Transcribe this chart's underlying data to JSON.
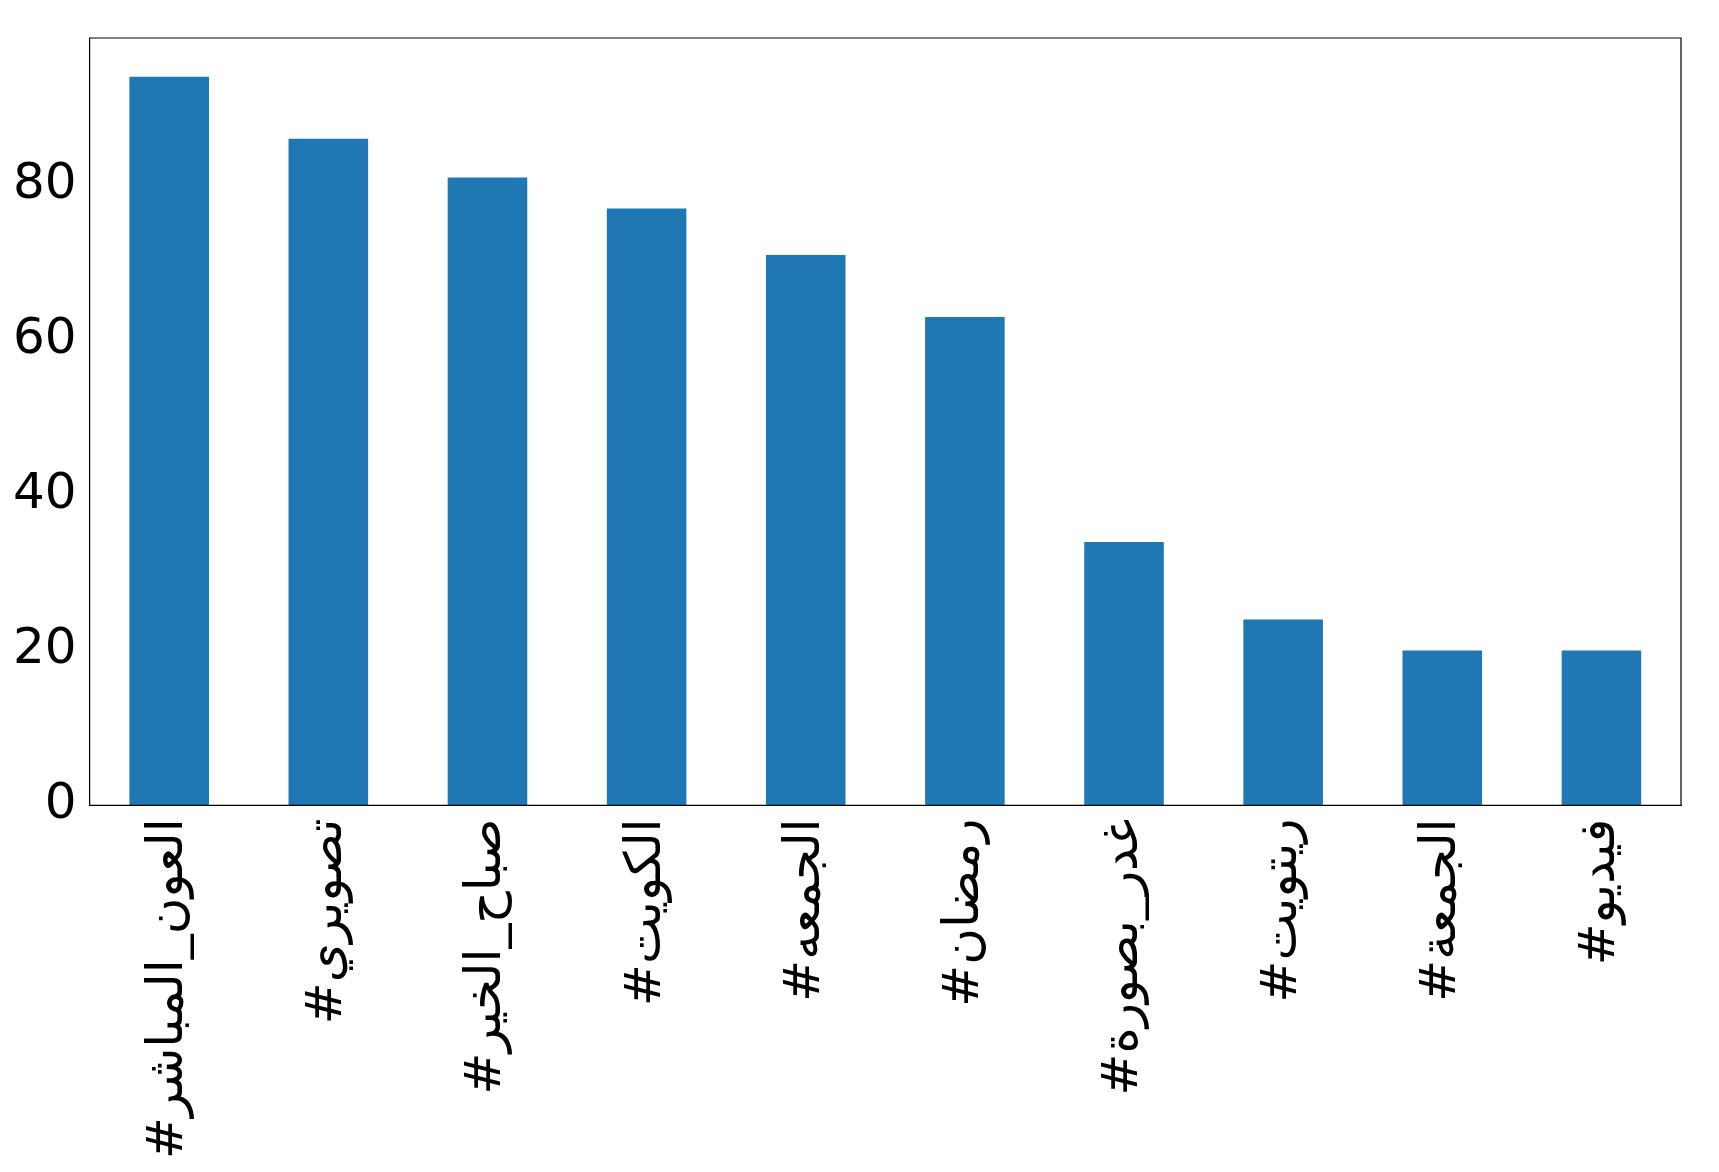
{
  "chart_data": {
    "type": "bar",
    "categories": [
      "#العون_المباشر",
      "#تصويري",
      "#صباح_الخير",
      "#الكويت",
      "#الجمعه",
      "#رمضان",
      "#غدر_بصورة",
      "#ريتويت",
      "#الجمعة",
      "#فيديو"
    ],
    "values": [
      94,
      86,
      81,
      77,
      71,
      63,
      34,
      24,
      20,
      20
    ],
    "color": "#1f77b4",
    "ylim": [
      0,
      99
    ],
    "yticks": [
      0,
      20,
      40,
      60,
      80
    ],
    "grid": false,
    "legend": false
  }
}
